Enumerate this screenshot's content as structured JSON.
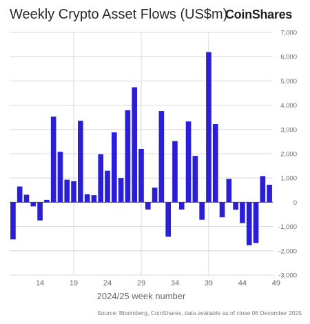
{
  "header": {
    "title": "Weekly Crypto Asset Flows (US$m)",
    "logo": "CoinShares"
  },
  "footer": {
    "source": "Source: Bloomberg, CoinShares, data available as of close 06 December 2025"
  },
  "colors": {
    "bar": "#2a1fd4",
    "grid": "#cfcfcf",
    "zero_line": "#444444",
    "tick_text": "#6a6a6a"
  },
  "chart_data": {
    "type": "bar",
    "xlabel": "2024/25 week number",
    "ylabel": "",
    "ylim": [
      -3000,
      7000
    ],
    "yticks": [
      -3000,
      -2000,
      -1000,
      0,
      1000,
      2000,
      3000,
      4000,
      5000,
      6000,
      7000
    ],
    "ytick_labels": [
      "-3,000",
      "-2,000",
      "-1,000",
      "0",
      "1,000",
      "2,000",
      "3,000",
      "4,000",
      "5,000",
      "6,000",
      "7,000"
    ],
    "xtick_labels": [
      "14",
      "19",
      "24",
      "29",
      "34",
      "39",
      "44",
      "49"
    ],
    "xtick_week_index": [
      4,
      9,
      14,
      19,
      24,
      29,
      34,
      39
    ],
    "vertical_grid_week_index": [
      9,
      19,
      29
    ],
    "grid": true,
    "values": [
      -1530,
      650,
      310,
      -170,
      -750,
      100,
      3530,
      2080,
      930,
      870,
      3360,
      330,
      290,
      1980,
      1300,
      2880,
      1000,
      3790,
      4740,
      2200,
      -300,
      600,
      3760,
      -1420,
      2520,
      -300,
      3330,
      1910,
      -720,
      6190,
      3220,
      -620,
      960,
      -310,
      -860,
      -1770,
      -1680,
      1080,
      720
    ]
  }
}
